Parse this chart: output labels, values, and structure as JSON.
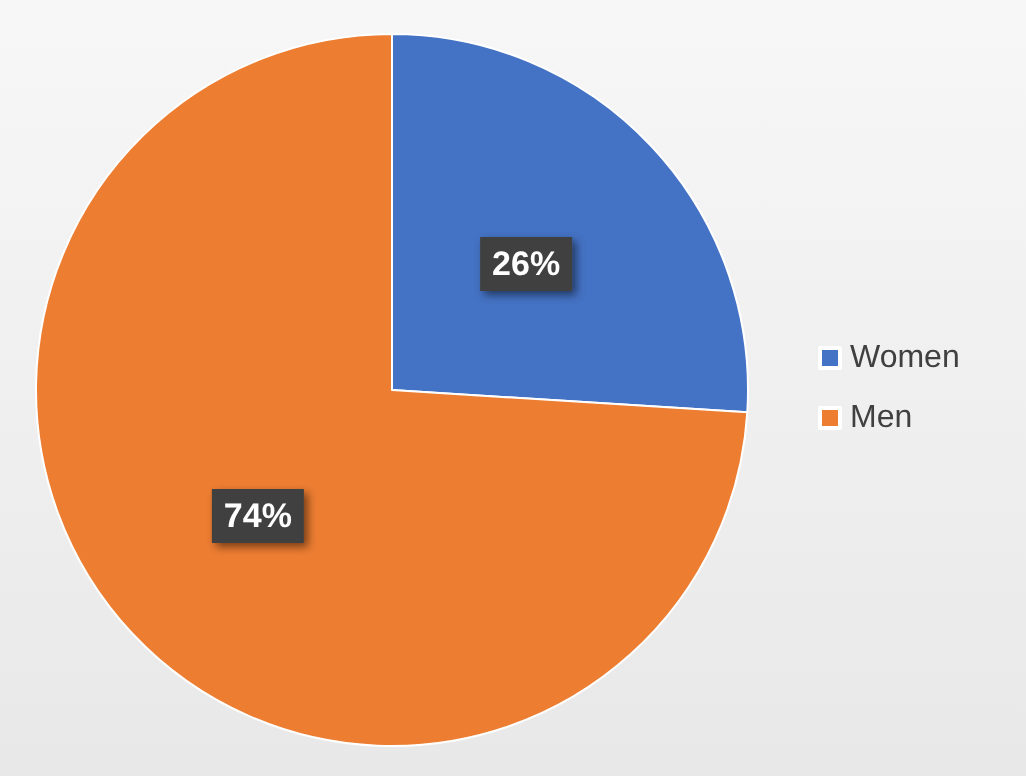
{
  "chart_data": {
    "type": "pie",
    "categories": [
      "Women",
      "Men"
    ],
    "values": [
      26,
      74
    ],
    "colors": [
      "#4472c4",
      "#ed7d31"
    ],
    "value_labels": [
      "26%",
      "74%"
    ],
    "legend": "right"
  }
}
